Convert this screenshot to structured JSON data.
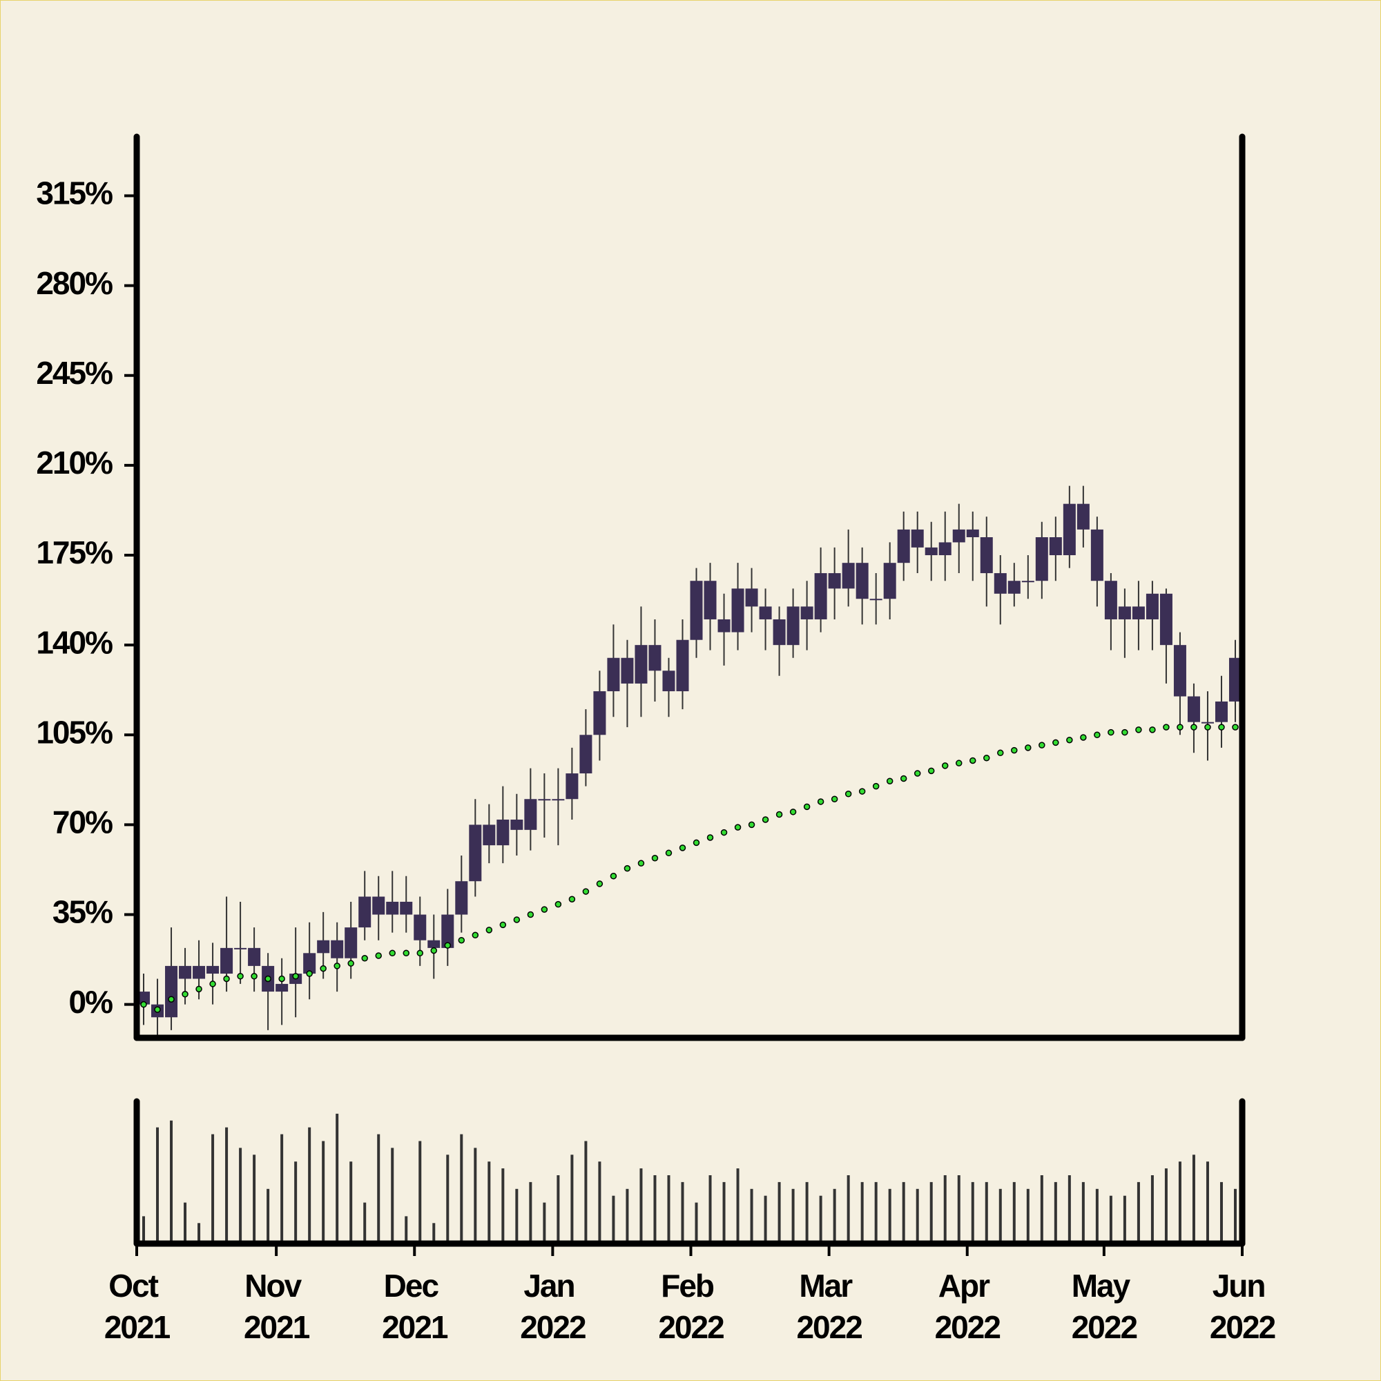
{
  "chart_data": {
    "type": "candlestick",
    "categories": [
      null,
      null,
      null,
      null,
      null,
      null,
      null,
      null,
      null,
      null,
      null,
      null,
      null,
      null,
      null,
      null,
      null,
      null,
      null,
      null,
      null,
      null,
      null,
      null,
      null,
      null,
      null,
      null,
      null,
      null,
      null,
      null,
      null,
      null,
      null,
      null,
      null,
      null,
      null,
      null,
      null,
      null,
      null,
      null,
      null,
      null,
      null,
      null,
      null,
      null,
      null,
      null,
      null,
      null,
      null,
      null,
      null,
      null,
      null,
      null,
      null,
      null,
      null,
      null,
      null,
      null,
      null,
      null,
      null,
      null,
      null,
      null,
      null,
      null,
      null,
      null,
      null,
      null,
      null,
      null
    ],
    "open": [
      5,
      0,
      -5,
      15,
      10,
      15,
      12,
      22,
      22,
      15,
      5,
      8,
      12,
      20,
      25,
      18,
      30,
      42,
      35,
      40,
      35,
      25,
      22,
      35,
      48,
      70,
      62,
      72,
      68,
      80,
      80,
      80,
      90,
      105,
      122,
      135,
      125,
      140,
      130,
      122,
      142,
      165,
      150,
      145,
      162,
      155,
      150,
      140,
      155,
      150,
      168,
      162,
      172,
      158,
      158,
      172,
      185,
      178,
      175,
      180,
      185,
      182,
      168,
      160,
      165,
      165,
      182,
      175,
      195,
      185,
      165,
      150,
      155,
      150,
      160,
      140,
      120,
      110,
      110,
      118
    ],
    "high": [
      12,
      10,
      30,
      22,
      25,
      24,
      42,
      40,
      30,
      20,
      18,
      30,
      32,
      36,
      32,
      40,
      52,
      50,
      52,
      50,
      42,
      35,
      45,
      58,
      80,
      78,
      85,
      82,
      92,
      90,
      92,
      100,
      115,
      130,
      148,
      142,
      155,
      150,
      135,
      150,
      170,
      172,
      160,
      172,
      170,
      162,
      155,
      162,
      165,
      178,
      178,
      185,
      178,
      168,
      180,
      192,
      192,
      188,
      192,
      195,
      192,
      190,
      175,
      172,
      175,
      188,
      190,
      202,
      202,
      190,
      168,
      162,
      165,
      165,
      162,
      145,
      125,
      122,
      128,
      142
    ],
    "low": [
      -8,
      -12,
      -10,
      0,
      2,
      0,
      5,
      8,
      5,
      -10,
      -8,
      -5,
      2,
      10,
      5,
      10,
      25,
      25,
      28,
      28,
      15,
      10,
      15,
      28,
      42,
      55,
      55,
      58,
      60,
      65,
      62,
      72,
      85,
      95,
      112,
      108,
      112,
      118,
      112,
      115,
      135,
      138,
      132,
      138,
      145,
      138,
      128,
      135,
      138,
      145,
      150,
      155,
      148,
      148,
      150,
      165,
      168,
      165,
      165,
      168,
      165,
      155,
      148,
      155,
      158,
      158,
      165,
      170,
      178,
      155,
      138,
      135,
      138,
      138,
      125,
      105,
      98,
      95,
      100,
      110
    ],
    "close": [
      0,
      -5,
      15,
      10,
      15,
      12,
      22,
      22,
      15,
      5,
      8,
      12,
      20,
      25,
      18,
      30,
      42,
      35,
      40,
      35,
      25,
      22,
      35,
      48,
      70,
      62,
      72,
      68,
      80,
      80,
      80,
      90,
      105,
      122,
      135,
      125,
      140,
      130,
      122,
      142,
      165,
      150,
      145,
      162,
      155,
      150,
      140,
      155,
      150,
      168,
      162,
      172,
      158,
      158,
      172,
      185,
      178,
      175,
      180,
      185,
      182,
      168,
      160,
      165,
      165,
      182,
      175,
      195,
      185,
      165,
      150,
      155,
      150,
      160,
      140,
      120,
      110,
      110,
      118,
      135
    ],
    "color": "#3b2f55",
    "wick_color": "#333333",
    "moving_average": {
      "color": "#33dd33",
      "values": [
        0,
        -2,
        2,
        4,
        6,
        8,
        10,
        11,
        11,
        10,
        10,
        11,
        12,
        14,
        15,
        16,
        18,
        19,
        20,
        20,
        20,
        21,
        23,
        25,
        27,
        29,
        31,
        33,
        35,
        37,
        39,
        41,
        44,
        47,
        50,
        53,
        55,
        57,
        59,
        61,
        63,
        65,
        67,
        69,
        70,
        72,
        74,
        75,
        77,
        79,
        80,
        82,
        83,
        85,
        87,
        88,
        90,
        91,
        93,
        94,
        95,
        96,
        98,
        99,
        100,
        101,
        102,
        103,
        104,
        105,
        106,
        106,
        107,
        107,
        108,
        108,
        108,
        108,
        108,
        108
      ]
    },
    "volume": {
      "color": "#333333",
      "ylim": [
        0,
        100
      ],
      "values": [
        20,
        85,
        90,
        30,
        15,
        80,
        85,
        70,
        65,
        40,
        80,
        60,
        85,
        75,
        95,
        60,
        30,
        80,
        70,
        20,
        75,
        15,
        65,
        80,
        70,
        60,
        55,
        40,
        45,
        30,
        50,
        65,
        75,
        60,
        35,
        40,
        55,
        50,
        50,
        45,
        30,
        50,
        45,
        55,
        40,
        35,
        45,
        40,
        45,
        35,
        40,
        50,
        45,
        45,
        40,
        45,
        40,
        45,
        50,
        50,
        45,
        45,
        40,
        45,
        40,
        50,
        45,
        50,
        45,
        40,
        35,
        35,
        45,
        50,
        55,
        60,
        65,
        60,
        45,
        40
      ]
    },
    "xlim": [
      0,
      80
    ],
    "xticks": [
      {
        "value": 0,
        "label": "Oct 2021"
      },
      {
        "value": 10.1,
        "label": "Nov 2021"
      },
      {
        "value": 20.1,
        "label": "Dec 2021"
      },
      {
        "value": 30.1,
        "label": "Jan 2022"
      },
      {
        "value": 40.1,
        "label": "Feb 2022"
      },
      {
        "value": 50.1,
        "label": "Mar 2022"
      },
      {
        "value": 60.1,
        "label": "Apr 2022"
      },
      {
        "value": 70,
        "label": "May 2022"
      },
      {
        "value": 80,
        "label": "Jun 2022"
      }
    ],
    "ylim": [
      -13,
      338
    ],
    "yticks": [
      {
        "value": 0,
        "label": "0%"
      },
      {
        "value": 35,
        "label": "35%"
      },
      {
        "value": 70,
        "label": "70%"
      },
      {
        "value": 105,
        "label": "105%"
      },
      {
        "value": 140,
        "label": "140%"
      },
      {
        "value": 175,
        "label": "175%"
      },
      {
        "value": 210,
        "label": "210%"
      },
      {
        "value": 245,
        "label": "245%"
      },
      {
        "value": 280,
        "label": "280%"
      },
      {
        "value": 315,
        "label": "315%"
      }
    ]
  }
}
